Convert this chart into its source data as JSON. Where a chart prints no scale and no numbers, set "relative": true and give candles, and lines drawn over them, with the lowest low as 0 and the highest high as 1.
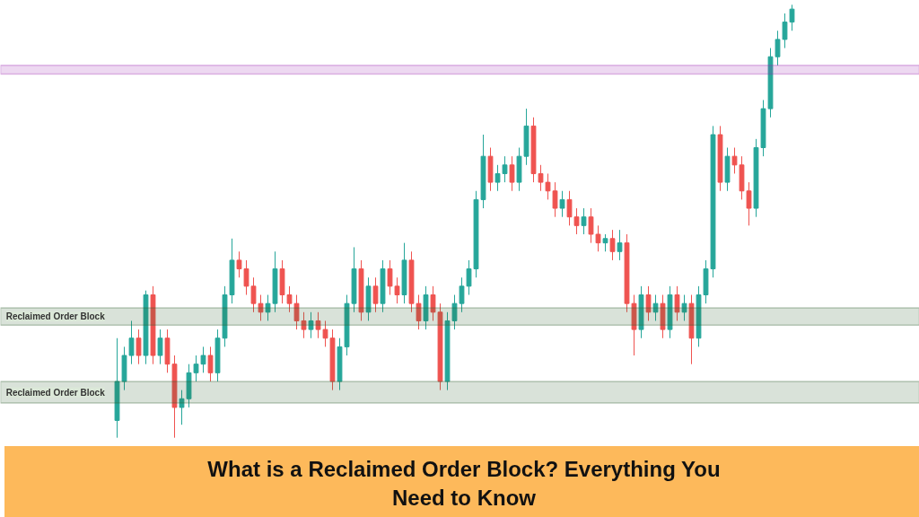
{
  "chart_data": {
    "type": "candlestick",
    "relative": true,
    "title": "What is a Reclaimed Order Block? Everything You Need to Know",
    "categories": [
      null,
      null,
      null,
      null,
      null,
      null,
      null,
      null,
      null,
      null,
      null,
      null,
      null,
      null,
      null,
      null,
      null,
      null,
      null,
      null,
      null,
      null,
      null,
      null,
      null,
      null,
      null,
      null,
      null,
      null,
      null,
      null,
      null,
      null,
      null,
      null,
      null,
      null,
      null,
      null,
      null,
      null,
      null,
      null,
      null,
      null,
      null,
      null,
      null,
      null,
      null,
      null,
      null,
      null,
      null,
      null,
      null,
      null,
      null,
      null,
      null,
      null,
      null,
      null,
      null,
      null,
      null,
      null,
      null,
      null,
      null,
      null,
      null,
      null,
      null,
      null,
      null,
      null,
      null,
      null,
      null,
      null,
      null,
      null,
      null,
      null,
      null,
      null,
      null,
      null,
      null,
      null,
      null,
      null,
      null
    ],
    "ohlc": [
      [
        0.04,
        0.23,
        0,
        0.13
      ],
      [
        0.13,
        0.21,
        0.11,
        0.19
      ],
      [
        0.19,
        0.27,
        0.17,
        0.23
      ],
      [
        0.23,
        0.25,
        0.17,
        0.19
      ],
      [
        0.19,
        0.34,
        0.17,
        0.33
      ],
      [
        0.33,
        0.35,
        0.17,
        0.19
      ],
      [
        0.19,
        0.25,
        0.17,
        0.23
      ],
      [
        0.23,
        0.25,
        0.15,
        0.17
      ],
      [
        0.17,
        0.19,
        0,
        0.07
      ],
      [
        0.07,
        0.11,
        0.03,
        0.09
      ],
      [
        0.09,
        0.17,
        0.07,
        0.15
      ],
      [
        0.15,
        0.19,
        0.13,
        0.17
      ],
      [
        0.17,
        0.21,
        0.15,
        0.19
      ],
      [
        0.19,
        0.21,
        0.13,
        0.15
      ],
      [
        0.15,
        0.25,
        0.13,
        0.23
      ],
      [
        0.23,
        0.35,
        0.21,
        0.33
      ],
      [
        0.33,
        0.46,
        0.31,
        0.41
      ],
      [
        0.41,
        0.43,
        0.37,
        0.39
      ],
      [
        0.39,
        0.41,
        0.33,
        0.35
      ],
      [
        0.35,
        0.37,
        0.29,
        0.31
      ],
      [
        0.31,
        0.33,
        0.27,
        0.29
      ],
      [
        0.29,
        0.33,
        0.27,
        0.31
      ],
      [
        0.31,
        0.43,
        0.29,
        0.39
      ],
      [
        0.39,
        0.41,
        0.31,
        0.33
      ],
      [
        0.33,
        0.35,
        0.29,
        0.31
      ],
      [
        0.31,
        0.33,
        0.25,
        0.27
      ],
      [
        0.27,
        0.29,
        0.23,
        0.25
      ],
      [
        0.25,
        0.29,
        0.23,
        0.27
      ],
      [
        0.27,
        0.29,
        0.23,
        0.25
      ],
      [
        0.25,
        0.27,
        0.21,
        0.23
      ],
      [
        0.23,
        0.25,
        0.11,
        0.13
      ],
      [
        0.13,
        0.23,
        0.11,
        0.21
      ],
      [
        0.21,
        0.33,
        0.19,
        0.31
      ],
      [
        0.31,
        0.44,
        0.29,
        0.39
      ],
      [
        0.39,
        0.41,
        0.27,
        0.29
      ],
      [
        0.29,
        0.37,
        0.27,
        0.35
      ],
      [
        0.35,
        0.37,
        0.29,
        0.31
      ],
      [
        0.31,
        0.41,
        0.29,
        0.39
      ],
      [
        0.39,
        0.41,
        0.33,
        0.35
      ],
      [
        0.35,
        0.37,
        0.31,
        0.33
      ],
      [
        0.33,
        0.45,
        0.31,
        0.41
      ],
      [
        0.41,
        0.43,
        0.29,
        0.31
      ],
      [
        0.31,
        0.33,
        0.25,
        0.27
      ],
      [
        0.27,
        0.35,
        0.25,
        0.33
      ],
      [
        0.33,
        0.35,
        0.27,
        0.29
      ],
      [
        0.29,
        0.31,
        0.11,
        0.13
      ],
      [
        0.13,
        0.29,
        0.11,
        0.27
      ],
      [
        0.27,
        0.33,
        0.25,
        0.31
      ],
      [
        0.31,
        0.37,
        0.29,
        0.35
      ],
      [
        0.35,
        0.41,
        0.33,
        0.39
      ],
      [
        0.39,
        0.57,
        0.37,
        0.55
      ],
      [
        0.55,
        0.7,
        0.53,
        0.65
      ],
      [
        0.65,
        0.67,
        0.57,
        0.59
      ],
      [
        0.59,
        0.63,
        0.57,
        0.61
      ],
      [
        0.61,
        0.65,
        0.59,
        0.63
      ],
      [
        0.63,
        0.65,
        0.57,
        0.59
      ],
      [
        0.59,
        0.67,
        0.57,
        0.65
      ],
      [
        0.65,
        0.76,
        0.63,
        0.72
      ],
      [
        0.72,
        0.74,
        0.59,
        0.61
      ],
      [
        0.61,
        0.63,
        0.57,
        0.59
      ],
      [
        0.59,
        0.61,
        0.55,
        0.57
      ],
      [
        0.57,
        0.59,
        0.51,
        0.53
      ],
      [
        0.53,
        0.57,
        0.51,
        0.55
      ],
      [
        0.55,
        0.57,
        0.49,
        0.51
      ],
      [
        0.51,
        0.53,
        0.47,
        0.49
      ],
      [
        0.49,
        0.53,
        0.47,
        0.51
      ],
      [
        0.51,
        0.53,
        0.45,
        0.47
      ],
      [
        0.47,
        0.49,
        0.43,
        0.45
      ],
      [
        0.45,
        0.47,
        0.43,
        0.46
      ],
      [
        0.46,
        0.48,
        0.41,
        0.43
      ],
      [
        0.43,
        0.48,
        0.41,
        0.45
      ],
      [
        0.45,
        0.47,
        0.29,
        0.31
      ],
      [
        0.31,
        0.33,
        0.19,
        0.25
      ],
      [
        0.25,
        0.35,
        0.23,
        0.33
      ],
      [
        0.33,
        0.35,
        0.27,
        0.29
      ],
      [
        0.29,
        0.33,
        0.27,
        0.31
      ],
      [
        0.31,
        0.33,
        0.23,
        0.25
      ],
      [
        0.25,
        0.35,
        0.23,
        0.33
      ],
      [
        0.33,
        0.35,
        0.27,
        0.29
      ],
      [
        0.29,
        0.33,
        0.27,
        0.31
      ],
      [
        0.31,
        0.33,
        0.17,
        0.23
      ],
      [
        0.23,
        0.35,
        0.21,
        0.33
      ],
      [
        0.33,
        0.41,
        0.31,
        0.39
      ],
      [
        0.39,
        0.72,
        0.37,
        0.7
      ],
      [
        0.7,
        0.72,
        0.57,
        0.59
      ],
      [
        0.59,
        0.67,
        0.57,
        0.65
      ],
      [
        0.65,
        0.67,
        0.61,
        0.63
      ],
      [
        0.63,
        0.65,
        0.55,
        0.57
      ],
      [
        0.57,
        0.59,
        0.49,
        0.53
      ],
      [
        0.53,
        0.69,
        0.51,
        0.67
      ],
      [
        0.67,
        0.78,
        0.65,
        0.76
      ],
      [
        0.76,
        0.9,
        0.74,
        0.88
      ],
      [
        0.88,
        0.94,
        0.86,
        0.92
      ],
      [
        0.92,
        0.98,
        0.9,
        0.96
      ],
      [
        0.96,
        1.0,
        0.94,
        0.99
      ]
    ],
    "colors": [
      "#26a69a",
      "#26a69a",
      "#26a69a",
      "#ef5350",
      "#26a69a",
      "#ef5350",
      "#26a69a",
      "#ef5350",
      "#ef5350",
      "#26a69a",
      "#26a69a",
      "#26a69a",
      "#26a69a",
      "#ef5350",
      "#26a69a",
      "#26a69a",
      "#26a69a",
      "#ef5350",
      "#ef5350",
      "#ef5350",
      "#ef5350",
      "#26a69a",
      "#26a69a",
      "#ef5350",
      "#ef5350",
      "#ef5350",
      "#ef5350",
      "#26a69a",
      "#ef5350",
      "#ef5350",
      "#ef5350",
      "#26a69a",
      "#26a69a",
      "#26a69a",
      "#ef5350",
      "#26a69a",
      "#ef5350",
      "#26a69a",
      "#ef5350",
      "#ef5350",
      "#26a69a",
      "#ef5350",
      "#ef5350",
      "#26a69a",
      "#ef5350",
      "#ef5350",
      "#26a69a",
      "#26a69a",
      "#26a69a",
      "#26a69a",
      "#26a69a",
      "#26a69a",
      "#ef5350",
      "#26a69a",
      "#26a69a",
      "#ef5350",
      "#26a69a",
      "#26a69a",
      "#ef5350",
      "#ef5350",
      "#ef5350",
      "#ef5350",
      "#26a69a",
      "#ef5350",
      "#ef5350",
      "#26a69a",
      "#ef5350",
      "#ef5350",
      "#26a69a",
      "#ef5350",
      "#26a69a",
      "#ef5350",
      "#ef5350",
      "#26a69a",
      "#ef5350",
      "#26a69a",
      "#ef5350",
      "#26a69a",
      "#ef5350",
      "#26a69a",
      "#ef5350",
      "#26a69a",
      "#26a69a",
      "#26a69a",
      "#ef5350",
      "#26a69a",
      "#ef5350",
      "#ef5350",
      "#ef5350",
      "#26a69a",
      "#26a69a",
      "#26a69a",
      "#26a69a",
      "#26a69a",
      "#26a69a"
    ],
    "bands": [
      {
        "axis": "y",
        "from": 0.84,
        "to": 0.86,
        "color": "#9c27b0"
      },
      {
        "axis": "y",
        "from": 0.26,
        "to": 0.3,
        "label": "Reclaimed Order Block",
        "color": "#2e5e2e"
      },
      {
        "axis": "y",
        "from": 0.08,
        "to": 0.13,
        "label": "Reclaimed Order Block",
        "color": "#2e5e2e"
      }
    ],
    "grid": false
  }
}
